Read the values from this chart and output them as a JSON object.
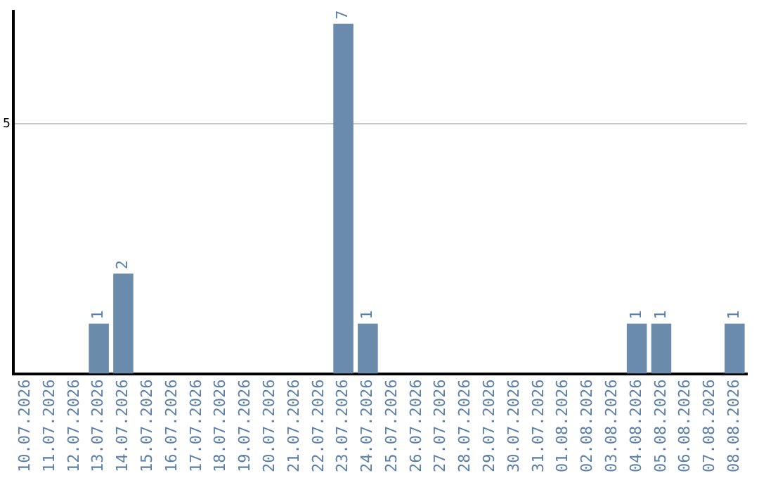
{
  "chart_data": {
    "type": "bar",
    "categories": [
      "10.07.2026",
      "11.07.2026",
      "12.07.2026",
      "13.07.2026",
      "14.07.2026",
      "15.07.2026",
      "16.07.2026",
      "17.07.2026",
      "18.07.2026",
      "19.07.2026",
      "20.07.2026",
      "21.07.2026",
      "22.07.2026",
      "23.07.2026",
      "24.07.2026",
      "25.07.2026",
      "26.07.2026",
      "27.07.2026",
      "28.07.2026",
      "29.07.2026",
      "30.07.2026",
      "31.07.2026",
      "01.08.2026",
      "02.08.2026",
      "03.08.2026",
      "04.08.2026",
      "05.08.2026",
      "06.08.2026",
      "07.08.2026",
      "08.08.2026"
    ],
    "values": [
      0,
      0,
      0,
      1,
      2,
      0,
      0,
      0,
      0,
      0,
      0,
      0,
      0,
      7,
      1,
      0,
      0,
      0,
      0,
      0,
      0,
      0,
      0,
      0,
      0,
      1,
      1,
      0,
      0,
      1
    ],
    "value_labels": [
      null,
      null,
      null,
      "1",
      "2",
      null,
      null,
      null,
      null,
      null,
      null,
      null,
      null,
      "7",
      "1",
      null,
      null,
      null,
      null,
      null,
      null,
      null,
      null,
      null,
      null,
      "1",
      "1",
      null,
      null,
      "1"
    ],
    "color": "#6a8bab",
    "ylim": [
      0,
      7.25
    ],
    "yticks": [
      5
    ],
    "grid": "y",
    "legend": false
  }
}
